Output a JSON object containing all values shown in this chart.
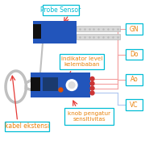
{
  "bg_color": "#ffffff",
  "labels": {
    "probe_sensor": "Probe Sensor",
    "indikator": "indikator level\nkelembaban",
    "knob": "knob pengatur\nsensitivitas",
    "kabel": "kabel ekstensi",
    "gnd": "GN",
    "do": "Do",
    "ao": "Ao",
    "vcc": "VC"
  },
  "label_color_cyan": "#00bcd4",
  "label_color_orange": "#e8820c",
  "label_color_red": "#e53935",
  "arrow_color_red": "#e53935",
  "line_color_pink": "#f4a0a0",
  "line_color_blue": "#aec6f0",
  "box_border_cyan": "#00bcd4",
  "sensor_blue": "#2255bb",
  "sensor_dark": "#1a3a6e",
  "prong_color": "#d8d8d8",
  "prong_edge": "#aaaaaa",
  "wire_color": "#c0c0c0"
}
